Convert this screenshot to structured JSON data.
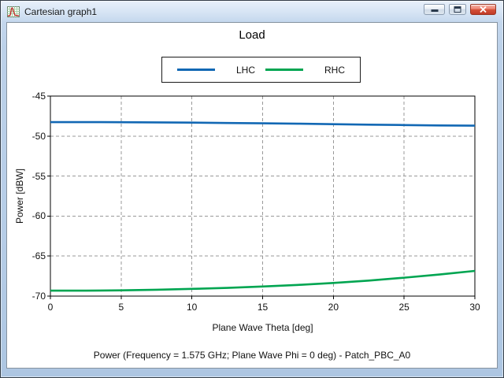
{
  "window": {
    "title": "Cartesian graph1"
  },
  "chart_data": {
    "type": "line",
    "title": "Load",
    "xlabel": "Plane Wave Theta [deg]",
    "ylabel": "Power [dBW]",
    "caption": "Power (Frequency = 1.575 GHz; Plane Wave Phi = 0 deg) - Patch_PBC_A0",
    "xlim": [
      0,
      30
    ],
    "ylim": [
      -70,
      -45
    ],
    "xticks": [
      0,
      5,
      10,
      15,
      20,
      25,
      30
    ],
    "yticks": [
      -45,
      -50,
      -55,
      -60,
      -65,
      -70
    ],
    "grid": true,
    "legend_position": "top-center",
    "x": [
      0,
      2.5,
      5,
      7.5,
      10,
      12.5,
      15,
      17.5,
      20,
      22.5,
      25,
      27.5,
      30
    ],
    "series": [
      {
        "name": "LHC",
        "color": "#1268b4",
        "values": [
          -48.25,
          -48.25,
          -48.27,
          -48.29,
          -48.32,
          -48.36,
          -48.4,
          -48.45,
          -48.51,
          -48.57,
          -48.62,
          -48.67,
          -48.7
        ]
      },
      {
        "name": "RHC",
        "color": "#00a551",
        "values": [
          -69.32,
          -69.32,
          -69.28,
          -69.21,
          -69.1,
          -68.97,
          -68.8,
          -68.6,
          -68.36,
          -68.06,
          -67.7,
          -67.3,
          -66.85
        ]
      }
    ],
    "styles": {
      "grid_color": "#999999",
      "axis_color": "#000000",
      "line_width": 2.6
    }
  }
}
